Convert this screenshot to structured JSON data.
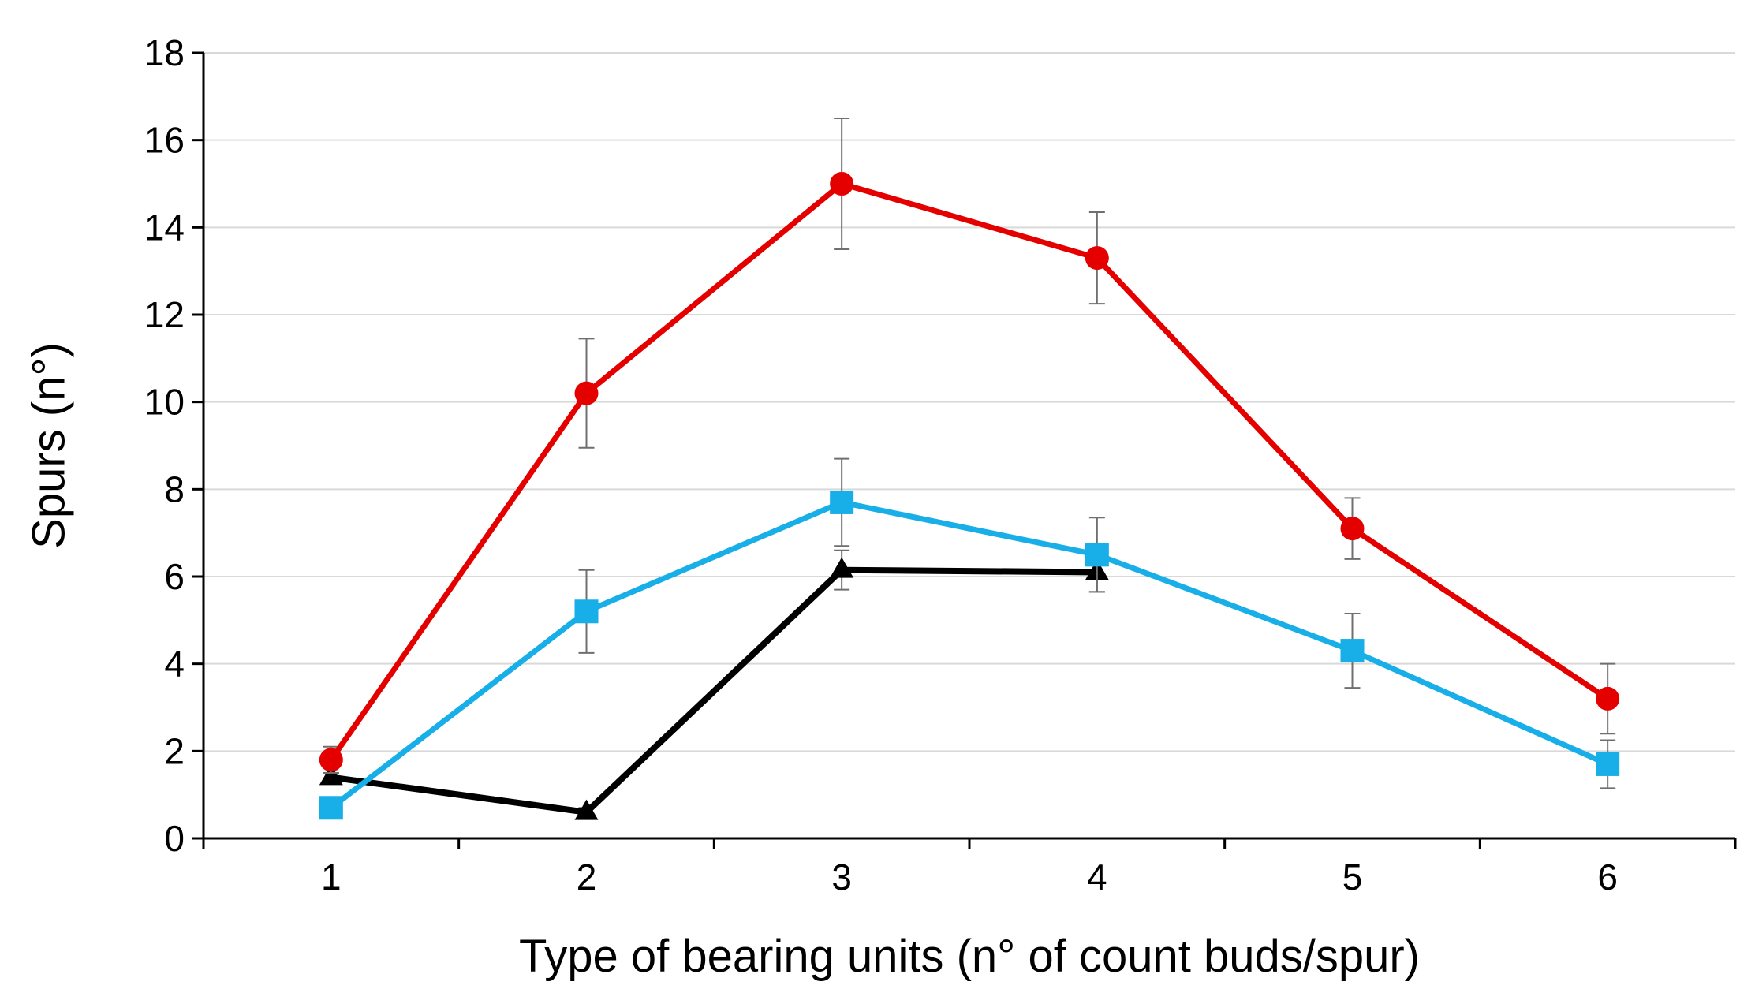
{
  "chart_data": {
    "type": "line",
    "title": "",
    "xlabel": "Type of bearing units (n° of count buds/spur)",
    "ylabel": "Spurs (n°)",
    "categories": [
      "1",
      "2",
      "3",
      "4",
      "5",
      "6"
    ],
    "ylim": [
      0,
      18
    ],
    "yticks": [
      "0",
      "2",
      "4",
      "6",
      "8",
      "10",
      "12",
      "14",
      "16",
      "18"
    ],
    "grid": true,
    "legend": "none",
    "series": [
      {
        "name": "red-series",
        "color": "#e50000",
        "marker": "circle",
        "values": [
          1.8,
          10.2,
          15.0,
          13.3,
          7.1,
          3.2
        ],
        "errors": [
          0.3,
          1.25,
          1.5,
          1.05,
          0.7,
          0.8
        ]
      },
      {
        "name": "cyan-series",
        "color": "#18aee8",
        "marker": "square",
        "values": [
          0.7,
          5.2,
          7.7,
          6.5,
          4.3,
          1.7
        ],
        "errors": [
          0.2,
          0.95,
          1.0,
          0.85,
          0.85,
          0.55
        ]
      },
      {
        "name": "black-series",
        "color": "#000000",
        "marker": "triangle",
        "values": [
          1.4,
          0.6,
          6.15,
          6.1,
          null,
          null
        ],
        "errors": [
          0.1,
          0.1,
          0.45,
          0.45,
          null,
          null
        ]
      }
    ]
  }
}
